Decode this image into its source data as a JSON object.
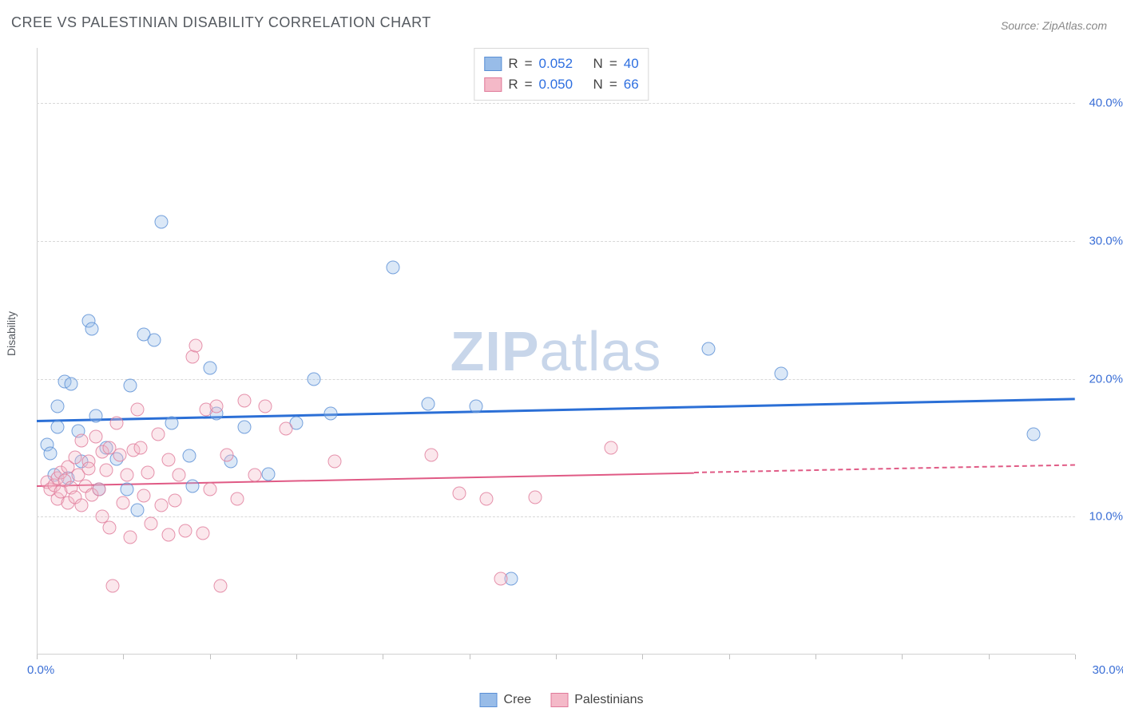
{
  "title": "CREE VS PALESTINIAN DISABILITY CORRELATION CHART",
  "source": "Source: ZipAtlas.com",
  "ylabel": "Disability",
  "watermark_zip": "ZIP",
  "watermark_atlas": "atlas",
  "chart": {
    "type": "scatter",
    "background_color": "#ffffff",
    "grid_color": "#d8d8d8",
    "axis_color": "#d0d0d0",
    "tick_label_color": "#3b6fd6",
    "label_fontsize": 14,
    "tick_fontsize": 15,
    "xlim": [
      0,
      30
    ],
    "ylim": [
      0,
      44
    ],
    "y_gridlines": [
      10,
      20,
      30,
      40
    ],
    "y_tick_labels": [
      "10.0%",
      "20.0%",
      "30.0%",
      "40.0%"
    ],
    "x_tick_positions": [
      0,
      2.5,
      5,
      7.5,
      10,
      12.5,
      15,
      17.5,
      20,
      22.5,
      25,
      27.5,
      30
    ],
    "x_label_min": "0.0%",
    "x_label_max": "30.0%",
    "marker_size": 17,
    "marker_opacity_fill": 0.35,
    "marker_opacity_stroke": 0.8,
    "series": [
      {
        "name": "Cree",
        "fill_color": "#98bce8",
        "stroke_color": "#5a8fd6",
        "trend": {
          "color": "#2b6fd6",
          "width": 3,
          "y_at_x0": 17.0,
          "y_at_x30": 18.6,
          "solid_until_x": 30
        },
        "points": [
          [
            0.3,
            15.2
          ],
          [
            0.4,
            14.6
          ],
          [
            0.5,
            13.0
          ],
          [
            0.6,
            16.5
          ],
          [
            0.6,
            18.0
          ],
          [
            0.8,
            19.8
          ],
          [
            1.0,
            19.6
          ],
          [
            1.2,
            16.2
          ],
          [
            1.3,
            14.0
          ],
          [
            1.5,
            24.2
          ],
          [
            1.6,
            23.6
          ],
          [
            1.7,
            17.3
          ],
          [
            1.8,
            12.0
          ],
          [
            2.0,
            15.0
          ],
          [
            2.3,
            14.2
          ],
          [
            2.6,
            12.0
          ],
          [
            2.9,
            10.5
          ],
          [
            2.7,
            19.5
          ],
          [
            3.1,
            23.2
          ],
          [
            3.4,
            22.8
          ],
          [
            3.6,
            31.4
          ],
          [
            3.9,
            16.8
          ],
          [
            4.4,
            14.4
          ],
          [
            4.5,
            12.2
          ],
          [
            5.0,
            20.8
          ],
          [
            5.2,
            17.5
          ],
          [
            5.6,
            14.0
          ],
          [
            6.0,
            16.5
          ],
          [
            6.7,
            13.1
          ],
          [
            7.5,
            16.8
          ],
          [
            8.0,
            20.0
          ],
          [
            8.5,
            17.5
          ],
          [
            10.3,
            28.1
          ],
          [
            11.3,
            18.2
          ],
          [
            12.7,
            18.0
          ],
          [
            13.7,
            5.5
          ],
          [
            19.4,
            22.2
          ],
          [
            21.5,
            20.4
          ],
          [
            28.8,
            16.0
          ],
          [
            0.9,
            12.8
          ]
        ]
      },
      {
        "name": "Palestinians",
        "fill_color": "#f4b9c8",
        "stroke_color": "#e07a9a",
        "trend": {
          "color": "#e05a85",
          "width": 2,
          "y_at_x0": 12.3,
          "y_at_x30": 13.8,
          "solid_until_x": 19
        },
        "points": [
          [
            0.3,
            12.5
          ],
          [
            0.4,
            12.0
          ],
          [
            0.5,
            12.3
          ],
          [
            0.6,
            12.8
          ],
          [
            0.6,
            11.3
          ],
          [
            0.7,
            13.2
          ],
          [
            0.7,
            11.8
          ],
          [
            0.8,
            12.6
          ],
          [
            0.9,
            13.6
          ],
          [
            0.9,
            11.0
          ],
          [
            1.0,
            12.1
          ],
          [
            1.1,
            14.3
          ],
          [
            1.1,
            11.4
          ],
          [
            1.2,
            13.0
          ],
          [
            1.3,
            15.5
          ],
          [
            1.3,
            10.8
          ],
          [
            1.4,
            12.2
          ],
          [
            1.5,
            14.0
          ],
          [
            1.5,
            13.5
          ],
          [
            1.6,
            11.6
          ],
          [
            1.7,
            15.8
          ],
          [
            1.8,
            12.0
          ],
          [
            1.9,
            10.0
          ],
          [
            1.9,
            14.7
          ],
          [
            2.0,
            13.4
          ],
          [
            2.1,
            15.0
          ],
          [
            2.1,
            9.2
          ],
          [
            2.2,
            5.0
          ],
          [
            2.3,
            16.8
          ],
          [
            2.4,
            14.5
          ],
          [
            2.5,
            11.0
          ],
          [
            2.6,
            13.0
          ],
          [
            2.7,
            8.5
          ],
          [
            2.8,
            14.8
          ],
          [
            2.9,
            17.8
          ],
          [
            3.0,
            15.0
          ],
          [
            3.1,
            11.5
          ],
          [
            3.2,
            13.2
          ],
          [
            3.3,
            9.5
          ],
          [
            3.5,
            16.0
          ],
          [
            3.6,
            10.8
          ],
          [
            3.8,
            14.1
          ],
          [
            3.8,
            8.7
          ],
          [
            4.0,
            11.2
          ],
          [
            4.1,
            13.0
          ],
          [
            4.3,
            9.0
          ],
          [
            4.5,
            21.6
          ],
          [
            4.6,
            22.4
          ],
          [
            4.9,
            17.8
          ],
          [
            5.0,
            12.0
          ],
          [
            5.2,
            18.0
          ],
          [
            5.3,
            5.0
          ],
          [
            5.5,
            14.5
          ],
          [
            5.8,
            11.3
          ],
          [
            6.0,
            18.4
          ],
          [
            6.3,
            13.0
          ],
          [
            6.6,
            18.0
          ],
          [
            7.2,
            16.4
          ],
          [
            8.6,
            14.0
          ],
          [
            11.4,
            14.5
          ],
          [
            12.2,
            11.7
          ],
          [
            13.0,
            11.3
          ],
          [
            14.4,
            11.4
          ],
          [
            16.6,
            15.0
          ],
          [
            13.4,
            5.5
          ],
          [
            4.8,
            8.8
          ]
        ]
      }
    ]
  },
  "legend_top": [
    {
      "swatch_fill": "#98bce8",
      "swatch_stroke": "#5a8fd6",
      "r_label": "R",
      "eq": "=",
      "r_value": "0.052",
      "n_label": "N",
      "n_value": "40"
    },
    {
      "swatch_fill": "#f4b9c8",
      "swatch_stroke": "#e07a9a",
      "r_label": "R",
      "eq": "=",
      "r_value": "0.050",
      "n_label": "N",
      "n_value": "66"
    }
  ],
  "legend_bottom": [
    {
      "swatch_fill": "#98bce8",
      "swatch_stroke": "#5a8fd6",
      "label": "Cree"
    },
    {
      "swatch_fill": "#f4b9c8",
      "swatch_stroke": "#e07a9a",
      "label": "Palestinians"
    }
  ]
}
